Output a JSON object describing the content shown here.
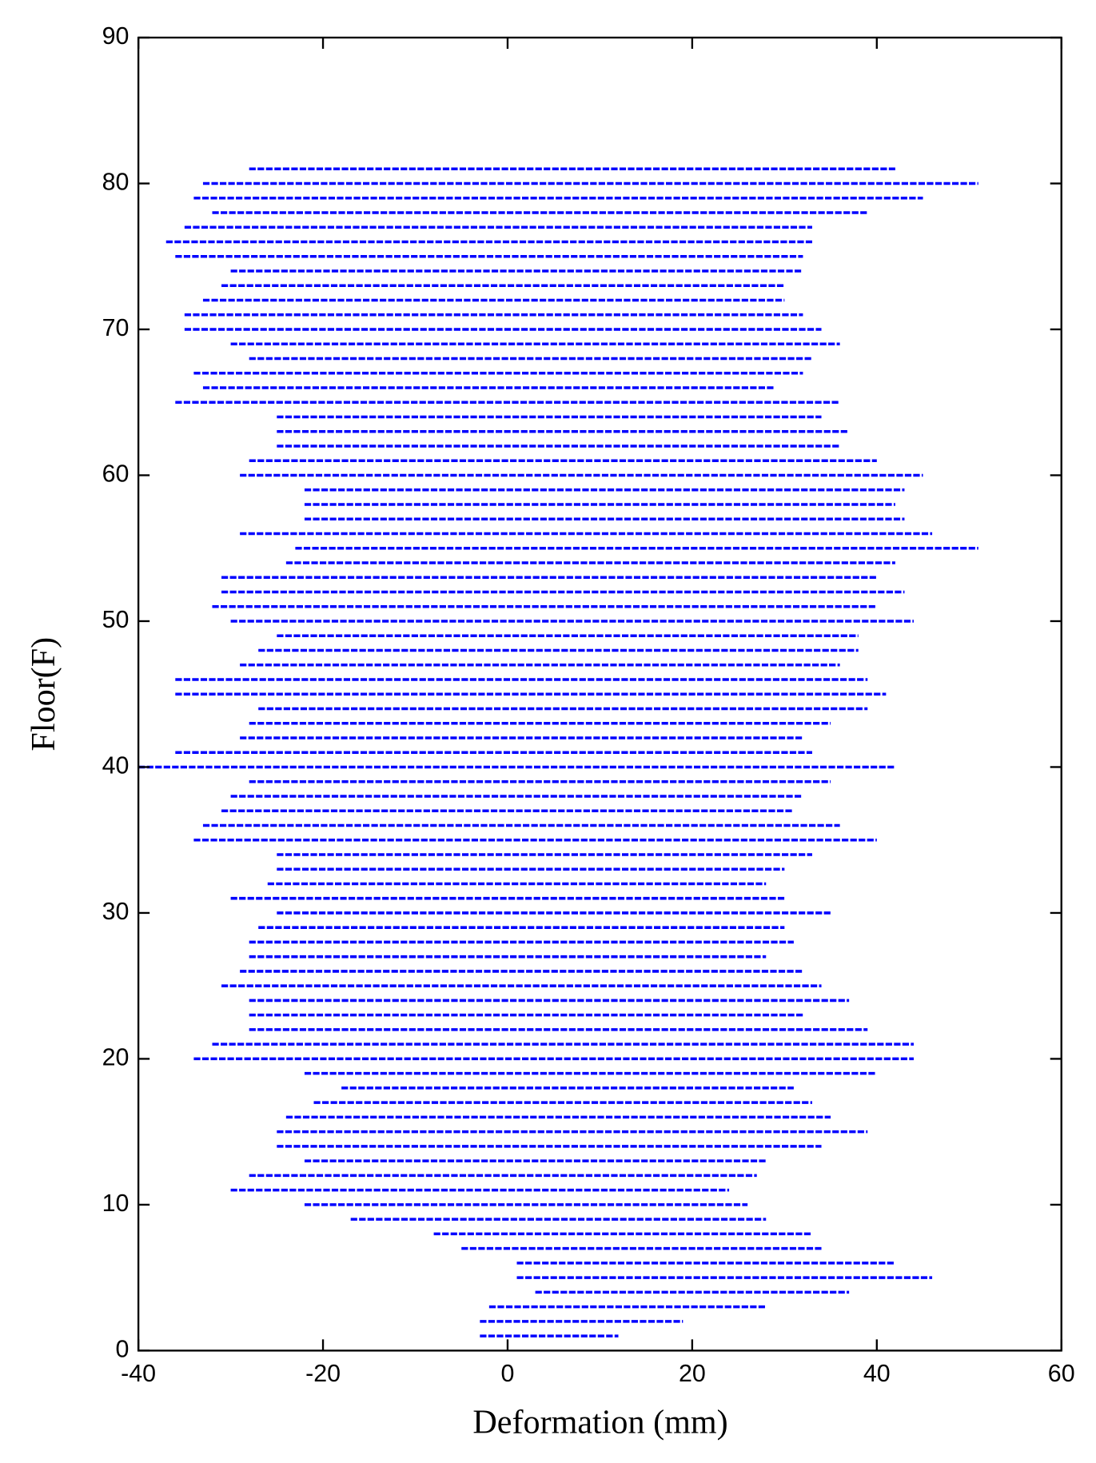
{
  "chart_data": {
    "type": "range",
    "xlabel": "Deformation (mm)",
    "ylabel": "Floor(F)",
    "color": "#0000ff",
    "y": [
      1,
      2,
      3,
      4,
      5,
      6,
      7,
      8,
      9,
      10,
      11,
      12,
      13,
      14,
      15,
      16,
      17,
      18,
      19,
      20,
      21,
      22,
      23,
      24,
      25,
      26,
      27,
      28,
      29,
      30,
      31,
      32,
      33,
      34,
      35,
      36,
      37,
      38,
      39,
      40,
      41,
      42,
      43,
      44,
      45,
      46,
      47,
      48,
      49,
      50,
      51,
      52,
      53,
      54,
      55,
      56,
      57,
      58,
      59,
      60,
      61,
      62,
      63,
      64,
      65,
      66,
      67,
      68,
      69,
      70,
      71,
      72,
      73,
      74,
      75,
      76,
      77,
      78,
      79,
      80,
      81
    ],
    "min": [
      -3,
      -3,
      -2,
      3,
      1,
      1,
      -5,
      -8,
      -17,
      -22,
      -30,
      -28,
      -22,
      -25,
      -25,
      -24,
      -21,
      -18,
      -22,
      -34,
      -32,
      -28,
      -28,
      -28,
      -31,
      -29,
      -28,
      -28,
      -27,
      -25,
      -30,
      -26,
      -25,
      -25,
      -34,
      -33,
      -31,
      -30,
      -28,
      -40,
      -36,
      -29,
      -28,
      -27,
      -36,
      -36,
      -29,
      -27,
      -25,
      -30,
      -32,
      -31,
      -31,
      -24,
      -23,
      -29,
      -22,
      -22,
      -22,
      -29,
      -28,
      -25,
      -25,
      -25,
      -36,
      -33,
      -34,
      -28,
      -30,
      -35,
      -35,
      -33,
      -31,
      -30,
      -36,
      -37,
      -35,
      -32,
      -34,
      -33,
      -28
    ],
    "max": [
      12,
      19,
      28,
      37,
      46,
      42,
      34,
      33,
      28,
      26,
      24,
      27,
      28,
      34,
      39,
      35,
      33,
      31,
      40,
      44,
      44,
      39,
      32,
      37,
      34,
      32,
      28,
      31,
      30,
      35,
      30,
      28,
      30,
      33,
      40,
      36,
      31,
      32,
      35,
      42,
      33,
      32,
      35,
      39,
      41,
      39,
      36,
      38,
      38,
      44,
      40,
      43,
      40,
      42,
      51,
      46,
      43,
      42,
      43,
      45,
      40,
      36,
      37,
      34,
      36,
      29,
      32,
      33,
      36,
      34,
      32,
      30,
      30,
      32,
      32,
      33,
      33,
      39,
      45,
      51,
      42
    ],
    "xlim": [
      -40,
      60
    ],
    "xticks": [
      -40,
      -20,
      0,
      20,
      40,
      60
    ],
    "ylim": [
      0,
      90
    ],
    "yticks": [
      0,
      10,
      20,
      30,
      40,
      50,
      60,
      70,
      80,
      90
    ]
  }
}
